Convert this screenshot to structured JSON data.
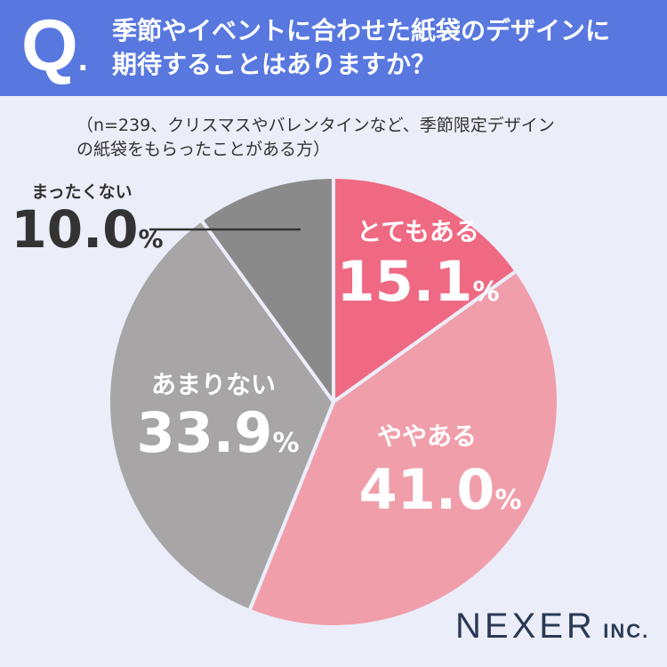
{
  "header": {
    "q_letter": "Q",
    "q_dot": ".",
    "question_line1": "季節やイベントに合わせた紙袋のデザインに",
    "question_line2": "期待することはありますか？"
  },
  "note": {
    "line1": "（n=239、クリスマスやバレンタインなど、季節限定デザイン",
    "line2": "の紙袋をもらったことがある方）"
  },
  "logo": {
    "brand": "NEXER",
    "suffix": "INC."
  },
  "chart_data": {
    "type": "pie",
    "start": "12 o'clock, clockwise",
    "percent_symbol": "%",
    "slices": [
      {
        "label": "とてもある",
        "value": 15.1,
        "value_text": "15.1",
        "color": "#ef6983",
        "text_color": "#ffffff"
      },
      {
        "label": "ややある",
        "value": 41.0,
        "value_text": "41.0",
        "color": "#f09eaa",
        "text_color": "#ffffff"
      },
      {
        "label": "あまりない",
        "value": 33.9,
        "value_text": "33.9",
        "color": "#a7a5a6",
        "text_color": "#ffffff"
      },
      {
        "label": "まったくない",
        "value": 10.0,
        "value_text": "10.0",
        "color": "#8a8a8a",
        "text_color": "#333333"
      }
    ]
  }
}
